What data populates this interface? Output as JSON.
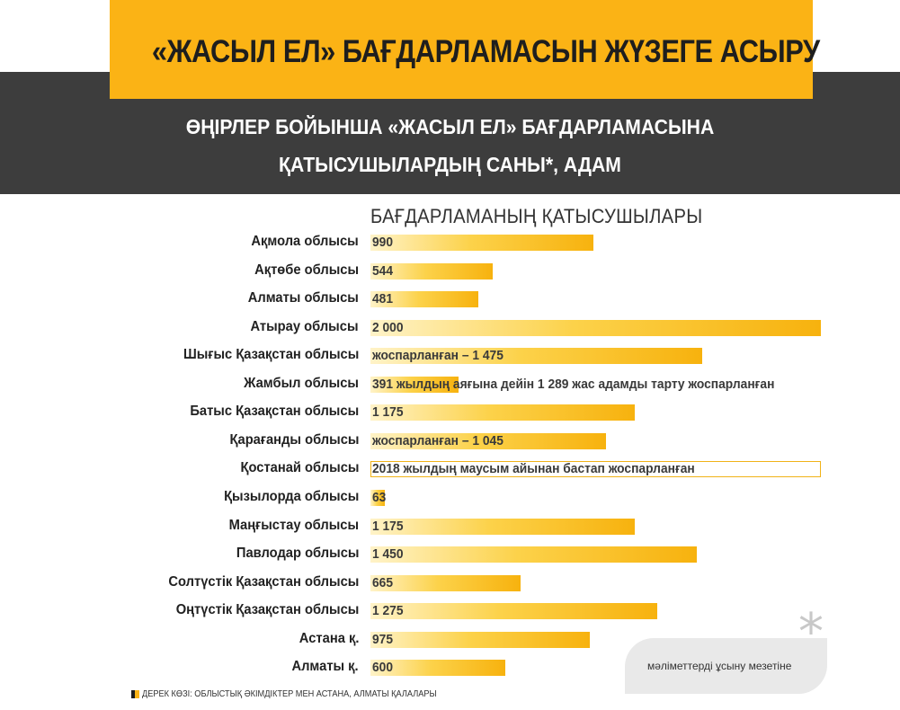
{
  "header": {
    "title": "«ЖАСЫЛ ЕЛ» БАҒДАРЛАМАСЫН ЖҮЗЕГЕ АСЫРУ",
    "subtitle_line1": "ӨҢІРЛЕР БОЙЫНША «ЖАСЫЛ ЕЛ» БАҒДАРЛАМАСЫНА",
    "subtitle_line2": "ҚАТЫСУШЫЛАРДЫҢ САНЫ*, АДАМ"
  },
  "colors": {
    "accent": "#fbb315",
    "band": "#3d3d3d",
    "bar_light": "#fff3c8",
    "bar_dark": "#f7b20e"
  },
  "chart_data": {
    "type": "bar",
    "orientation": "horizontal",
    "series_label": "БАҒДАРЛАМАНЫҢ ҚАТЫСУШЫЛАРЫ",
    "xlim": [
      0,
      2000
    ],
    "grid": false,
    "categories": [
      "Ақмола облысы",
      "Ақтөбе облысы",
      "Алматы облысы",
      "Атырау облысы",
      "Шығыс Қазақстан облысы",
      "Жамбыл облысы",
      "Батыс Қазақстан облысы",
      "Қарағанды облысы",
      "Қостанай облысы",
      "Қызылорда облысы",
      "Маңғыстау облысы",
      "Павлодар облысы",
      "Солтүстік Қазақстан облысы",
      "Оңтүстік Қазақстан облысы",
      "Астана қ.",
      "Алматы қ."
    ],
    "values": [
      990,
      544,
      481,
      2000,
      1475,
      391,
      1175,
      1045,
      2000,
      63,
      1175,
      1450,
      665,
      1275,
      975,
      600
    ],
    "bar_styles": [
      "fill",
      "fill",
      "fill",
      "fill",
      "fill",
      "fill",
      "fill",
      "fill",
      "outline",
      "fill",
      "fill",
      "fill",
      "fill",
      "fill",
      "fill",
      "fill"
    ],
    "bar_labels": [
      "990",
      "544",
      "481",
      "2 000",
      "жоспарланған – 1 475",
      "391 жылдың аяғына дейін 1 289 жас адамды тарту жоспарланған",
      "1 175",
      "жоспарланған – 1 045",
      "2018 жылдың маусым айынан бастап жоспарланған",
      "63",
      "1 175",
      "1 450",
      "665",
      "1 275",
      "975",
      "600"
    ]
  },
  "footnote": {
    "asterisk": "*",
    "text": "мәліметтерді ұсыну мезетіне"
  },
  "source": {
    "text": "ДЕРЕК КӨЗІ: ОБЛЫСТЫҚ ӘКІМДІКТЕР МЕН АСТАНА, АЛМАТЫ ҚАЛАЛАРЫ"
  }
}
